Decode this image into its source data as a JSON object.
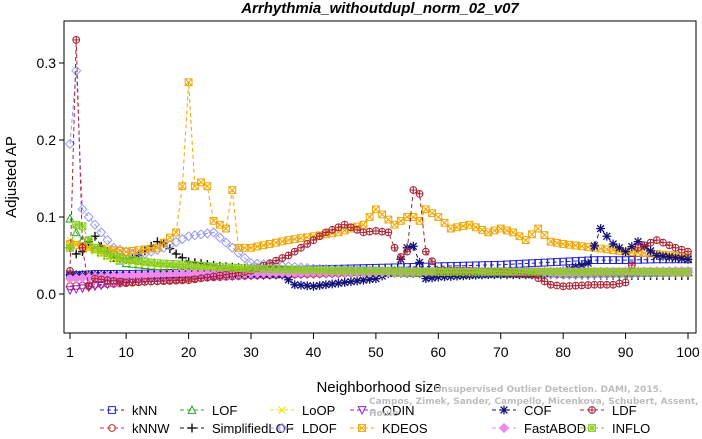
{
  "chart_data": {
    "type": "line",
    "title": "Arrhythmia_withoutdupl_norm_02_v07",
    "xlabel": "Neighborhood size",
    "ylabel": "Adjusted AP",
    "xlim": [
      1,
      100
    ],
    "ylim": [
      -0.05,
      0.34
    ],
    "x_ticks": [
      1,
      10,
      20,
      30,
      40,
      50,
      60,
      70,
      80,
      90,
      100
    ],
    "y_ticks": [
      0.0,
      0.1,
      0.2,
      0.3
    ],
    "x_tick_labels": [
      "1",
      "10",
      "20",
      "30",
      "40",
      "50",
      "60",
      "70",
      "80",
      "90",
      "100"
    ],
    "y_tick_labels": [
      "0.0",
      "0.1",
      "0.2",
      "0.3"
    ],
    "grid": false,
    "legend_position": "bottom",
    "watermark": [
      "Campos, Zimek, Sander, Campello, Micenkova, Schubert, Assent, Houle",
      "Unsupervised Outlier Detection. DAMI, 2015."
    ],
    "series": [
      {
        "name": "kNN",
        "color": "#2222cc",
        "marker": "square",
        "points": [
          [
            1,
            0.024
          ],
          [
            5,
            0.026
          ],
          [
            10,
            0.026
          ],
          [
            20,
            0.028
          ],
          [
            30,
            0.03
          ],
          [
            40,
            0.032
          ],
          [
            50,
            0.034
          ],
          [
            60,
            0.036
          ],
          [
            70,
            0.038
          ],
          [
            75,
            0.04
          ],
          [
            80,
            0.042
          ],
          [
            85,
            0.044
          ],
          [
            90,
            0.044
          ],
          [
            95,
            0.045
          ],
          [
            100,
            0.045
          ]
        ]
      },
      {
        "name": "kNNW",
        "color": "#cc3333",
        "marker": "circle",
        "points": [
          [
            1,
            0.01
          ],
          [
            5,
            0.012
          ],
          [
            10,
            0.014
          ],
          [
            20,
            0.02
          ],
          [
            30,
            0.024
          ],
          [
            40,
            0.026
          ],
          [
            50,
            0.028
          ],
          [
            60,
            0.028
          ],
          [
            70,
            0.028
          ],
          [
            77,
            0.026
          ],
          [
            80,
            0.025
          ],
          [
            90,
            0.026
          ],
          [
            100,
            0.028
          ]
        ]
      },
      {
        "name": "LOF",
        "color": "#22aa22",
        "marker": "triangle-up",
        "points": [
          [
            1,
            0.098
          ],
          [
            2,
            0.08
          ],
          [
            3,
            0.07
          ],
          [
            5,
            0.058
          ],
          [
            7,
            0.05
          ],
          [
            10,
            0.04
          ],
          [
            15,
            0.036
          ],
          [
            20,
            0.032
          ],
          [
            30,
            0.03
          ],
          [
            40,
            0.03
          ],
          [
            50,
            0.028
          ],
          [
            60,
            0.027
          ],
          [
            70,
            0.026
          ],
          [
            80,
            0.027
          ],
          [
            90,
            0.027
          ],
          [
            100,
            0.028
          ]
        ]
      },
      {
        "name": "SimplifiedLOF",
        "color": "#111111",
        "marker": "plus",
        "points": [
          [
            1,
            0.06
          ],
          [
            2,
            0.052
          ],
          [
            3,
            0.055
          ],
          [
            4,
            0.068
          ],
          [
            5,
            0.075
          ],
          [
            6,
            0.062
          ],
          [
            8,
            0.048
          ],
          [
            10,
            0.045
          ],
          [
            12,
            0.05
          ],
          [
            14,
            0.062
          ],
          [
            15,
            0.068
          ],
          [
            16,
            0.066
          ],
          [
            18,
            0.052
          ],
          [
            20,
            0.042
          ],
          [
            25,
            0.036
          ],
          [
            30,
            0.033
          ],
          [
            40,
            0.03
          ],
          [
            50,
            0.028
          ],
          [
            60,
            0.026
          ],
          [
            70,
            0.025
          ],
          [
            80,
            0.025
          ],
          [
            90,
            0.024
          ],
          [
            100,
            0.024
          ]
        ]
      },
      {
        "name": "LoOP",
        "color": "#e6e600",
        "marker": "x",
        "points": [
          [
            1,
            0.07
          ],
          [
            3,
            0.062
          ],
          [
            5,
            0.055
          ],
          [
            8,
            0.045
          ],
          [
            12,
            0.04
          ],
          [
            18,
            0.036
          ],
          [
            25,
            0.033
          ],
          [
            35,
            0.031
          ],
          [
            50,
            0.029
          ],
          [
            65,
            0.028
          ],
          [
            80,
            0.027
          ],
          [
            100,
            0.027
          ]
        ]
      },
      {
        "name": "LDOF",
        "color": "#9999ee",
        "marker": "diamond",
        "points": [
          [
            1,
            0.195
          ],
          [
            2,
            0.29
          ],
          [
            3,
            0.11
          ],
          [
            5,
            0.09
          ],
          [
            8,
            0.06
          ],
          [
            12,
            0.05
          ],
          [
            16,
            0.06
          ],
          [
            20,
            0.075
          ],
          [
            24,
            0.08
          ],
          [
            27,
            0.06
          ],
          [
            30,
            0.04
          ],
          [
            40,
            0.033
          ],
          [
            50,
            0.03
          ],
          [
            60,
            0.028
          ],
          [
            70,
            0.026
          ],
          [
            80,
            0.026
          ],
          [
            90,
            0.026
          ],
          [
            100,
            0.028
          ]
        ]
      },
      {
        "name": "ODIN",
        "color": "#9922cc",
        "marker": "triangle-down",
        "points": [
          [
            1,
            0.005
          ],
          [
            5,
            0.01
          ],
          [
            10,
            0.016
          ],
          [
            15,
            0.02
          ],
          [
            20,
            0.022
          ],
          [
            30,
            0.024
          ],
          [
            40,
            0.026
          ],
          [
            50,
            0.027
          ],
          [
            60,
            0.027
          ],
          [
            70,
            0.028
          ],
          [
            80,
            0.028
          ],
          [
            90,
            0.028
          ],
          [
            100,
            0.029
          ]
        ]
      },
      {
        "name": "KDEOS",
        "color": "#f0a500",
        "marker": "square-x",
        "points": [
          [
            1,
            0.065
          ],
          [
            5,
            0.06
          ],
          [
            10,
            0.055
          ],
          [
            15,
            0.06
          ],
          [
            18,
            0.08
          ],
          [
            19,
            0.14
          ],
          [
            20,
            0.275
          ],
          [
            21,
            0.14
          ],
          [
            22,
            0.145
          ],
          [
            23,
            0.14
          ],
          [
            24,
            0.095
          ],
          [
            26,
            0.085
          ],
          [
            27,
            0.135
          ],
          [
            28,
            0.06
          ],
          [
            30,
            0.06
          ],
          [
            33,
            0.065
          ],
          [
            36,
            0.07
          ],
          [
            40,
            0.075
          ],
          [
            44,
            0.08
          ],
          [
            48,
            0.09
          ],
          [
            50,
            0.11
          ],
          [
            53,
            0.09
          ],
          [
            55,
            0.1
          ],
          [
            56,
            0.1
          ],
          [
            57,
            0.095
          ],
          [
            58,
            0.11
          ],
          [
            60,
            0.1
          ],
          [
            62,
            0.085
          ],
          [
            65,
            0.09
          ],
          [
            68,
            0.08
          ],
          [
            70,
            0.085
          ],
          [
            72,
            0.08
          ],
          [
            74,
            0.07
          ],
          [
            76,
            0.085
          ],
          [
            78,
            0.068
          ],
          [
            80,
            0.065
          ],
          [
            85,
            0.06
          ],
          [
            90,
            0.055
          ],
          [
            95,
            0.052
          ],
          [
            100,
            0.048
          ]
        ]
      },
      {
        "name": "COF",
        "color": "#111177",
        "marker": "asterisk",
        "points": [
          [
            1,
            0.025
          ],
          [
            10,
            0.025
          ],
          [
            20,
            0.026
          ],
          [
            30,
            0.026
          ],
          [
            35,
            0.025
          ],
          [
            37,
            0.012
          ],
          [
            40,
            0.01
          ],
          [
            45,
            0.015
          ],
          [
            50,
            0.02
          ],
          [
            53,
            0.03
          ],
          [
            55,
            0.06
          ],
          [
            56,
            0.062
          ],
          [
            58,
            0.02
          ],
          [
            60,
            0.022
          ],
          [
            65,
            0.024
          ],
          [
            70,
            0.026
          ],
          [
            75,
            0.025
          ],
          [
            80,
            0.03
          ],
          [
            84,
            0.04
          ],
          [
            86,
            0.085
          ],
          [
            88,
            0.065
          ],
          [
            90,
            0.055
          ],
          [
            92,
            0.068
          ],
          [
            95,
            0.05
          ],
          [
            100,
            0.045
          ]
        ]
      },
      {
        "name": "FastABOD",
        "color": "#ee88ee",
        "marker": "diamond-filled",
        "points": [
          [
            1,
            0.02
          ],
          [
            5,
            0.022
          ],
          [
            10,
            0.024
          ],
          [
            20,
            0.026
          ],
          [
            30,
            0.027
          ],
          [
            40,
            0.028
          ],
          [
            50,
            0.028
          ],
          [
            60,
            0.029
          ],
          [
            70,
            0.029
          ],
          [
            80,
            0.029
          ],
          [
            90,
            0.029
          ],
          [
            100,
            0.03
          ]
        ]
      },
      {
        "name": "LDF",
        "color": "#aa2233",
        "marker": "circle-plus",
        "points": [
          [
            1,
            0.03
          ],
          [
            2,
            0.33
          ],
          [
            3,
            0.06
          ],
          [
            4,
            0.01
          ],
          [
            5,
            0.02
          ],
          [
            10,
            0.015
          ],
          [
            20,
            0.018
          ],
          [
            30,
            0.03
          ],
          [
            36,
            0.05
          ],
          [
            38,
            0.06
          ],
          [
            40,
            0.07
          ],
          [
            42,
            0.08
          ],
          [
            45,
            0.09
          ],
          [
            48,
            0.08
          ],
          [
            50,
            0.082
          ],
          [
            52,
            0.08
          ],
          [
            53,
            0.06
          ],
          [
            54,
            0.048
          ],
          [
            55,
            0.055
          ],
          [
            56,
            0.135
          ],
          [
            57,
            0.13
          ],
          [
            58,
            0.055
          ],
          [
            60,
            0.03
          ],
          [
            62,
            0.03
          ],
          [
            65,
            0.03
          ],
          [
            70,
            0.028
          ],
          [
            75,
            0.025
          ],
          [
            78,
            0.012
          ],
          [
            80,
            0.01
          ],
          [
            85,
            0.012
          ],
          [
            88,
            0.012
          ],
          [
            90,
            0.015
          ],
          [
            92,
            0.06
          ],
          [
            95,
            0.07
          ],
          [
            98,
            0.06
          ],
          [
            100,
            0.055
          ]
        ]
      },
      {
        "name": "INFLO",
        "color": "#88cc22",
        "marker": "square-star",
        "points": [
          [
            1,
            0.06
          ],
          [
            2,
            0.09
          ],
          [
            3,
            0.088
          ],
          [
            4,
            0.07
          ],
          [
            5,
            0.06
          ],
          [
            8,
            0.05
          ],
          [
            10,
            0.045
          ],
          [
            15,
            0.04
          ],
          [
            20,
            0.038
          ],
          [
            25,
            0.035
          ],
          [
            30,
            0.033
          ],
          [
            40,
            0.031
          ],
          [
            50,
            0.03
          ],
          [
            60,
            0.029
          ],
          [
            70,
            0.029
          ],
          [
            80,
            0.029
          ],
          [
            90,
            0.029
          ],
          [
            100,
            0.029
          ]
        ]
      }
    ]
  }
}
